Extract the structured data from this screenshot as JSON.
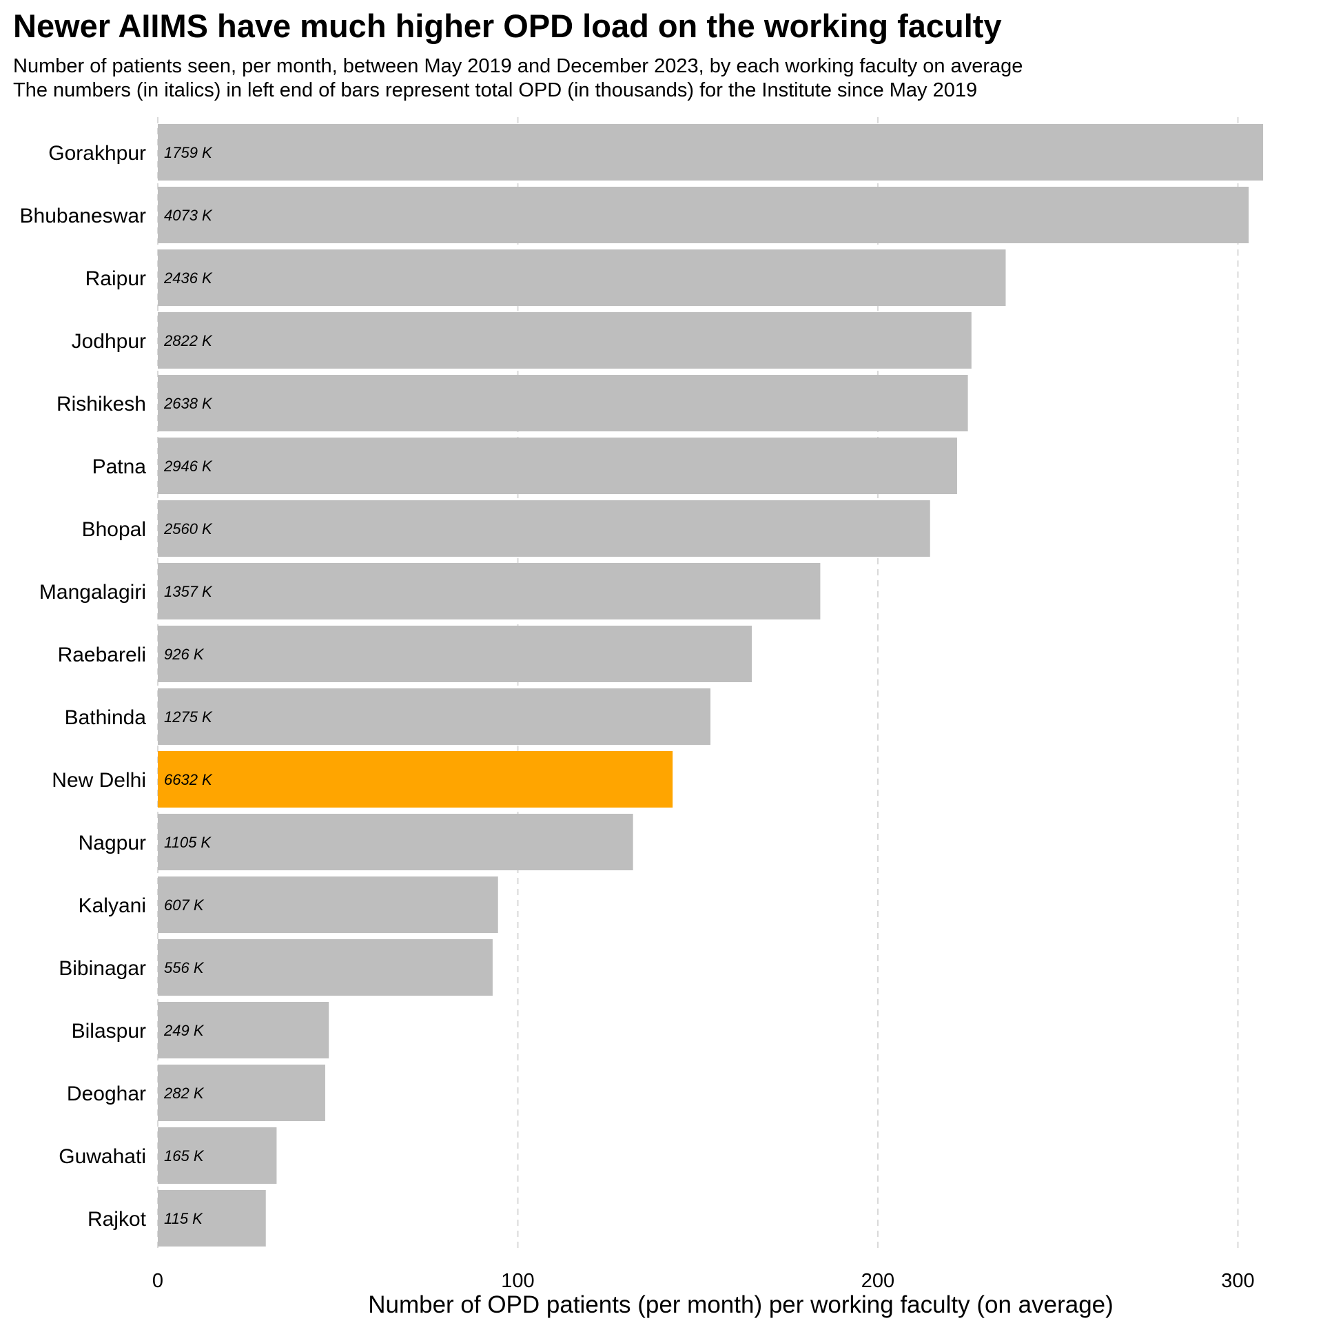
{
  "title": "Newer AIIMS have much higher OPD load on the working faculty",
  "subtitle_lines": [
    "Number of patients seen, per month, between May 2019 and December 2023, by each working faculty on average",
    "The numbers (in italics) in left end of bars represent total OPD (in thousands) for the Institute since May 2019"
  ],
  "colors": {
    "default_bar": "#bebebe",
    "highlight_bar": "#ffa500",
    "grid": "#d9d9d9"
  },
  "chart_data": {
    "type": "bar",
    "orientation": "horizontal",
    "categories": [
      "Gorakhpur",
      "Bhubaneswar",
      "Raipur",
      "Jodhpur",
      "Rishikesh",
      "Patna",
      "Bhopal",
      "Mangalagiri",
      "Raebareli",
      "Bathinda",
      "New Delhi",
      "Nagpur",
      "Kalyani",
      "Bibinagar",
      "Bilaspur",
      "Deoghar",
      "Guwahati",
      "Rajkot"
    ],
    "values": [
      307,
      303,
      235.5,
      226,
      225,
      222,
      214.5,
      184,
      165,
      153.5,
      143,
      132,
      94.5,
      93,
      47.5,
      46.5,
      33,
      30
    ],
    "bar_labels": [
      "1759 K",
      "4073 K",
      "2436 K",
      "2822 K",
      "2638 K",
      "2946 K",
      "2560 K",
      "1357 K",
      "926 K",
      "1275 K",
      "6632 K",
      "1105 K",
      "607 K",
      "556 K",
      "249 K",
      "282 K",
      "165 K",
      "115 K"
    ],
    "highlight": "New Delhi",
    "xlabel": "Number of OPD patients (per month) per working faculty (on average)",
    "xlim": [
      0,
      315
    ],
    "xticks": [
      0,
      100,
      200,
      300
    ],
    "grid": "vertical dashed"
  }
}
